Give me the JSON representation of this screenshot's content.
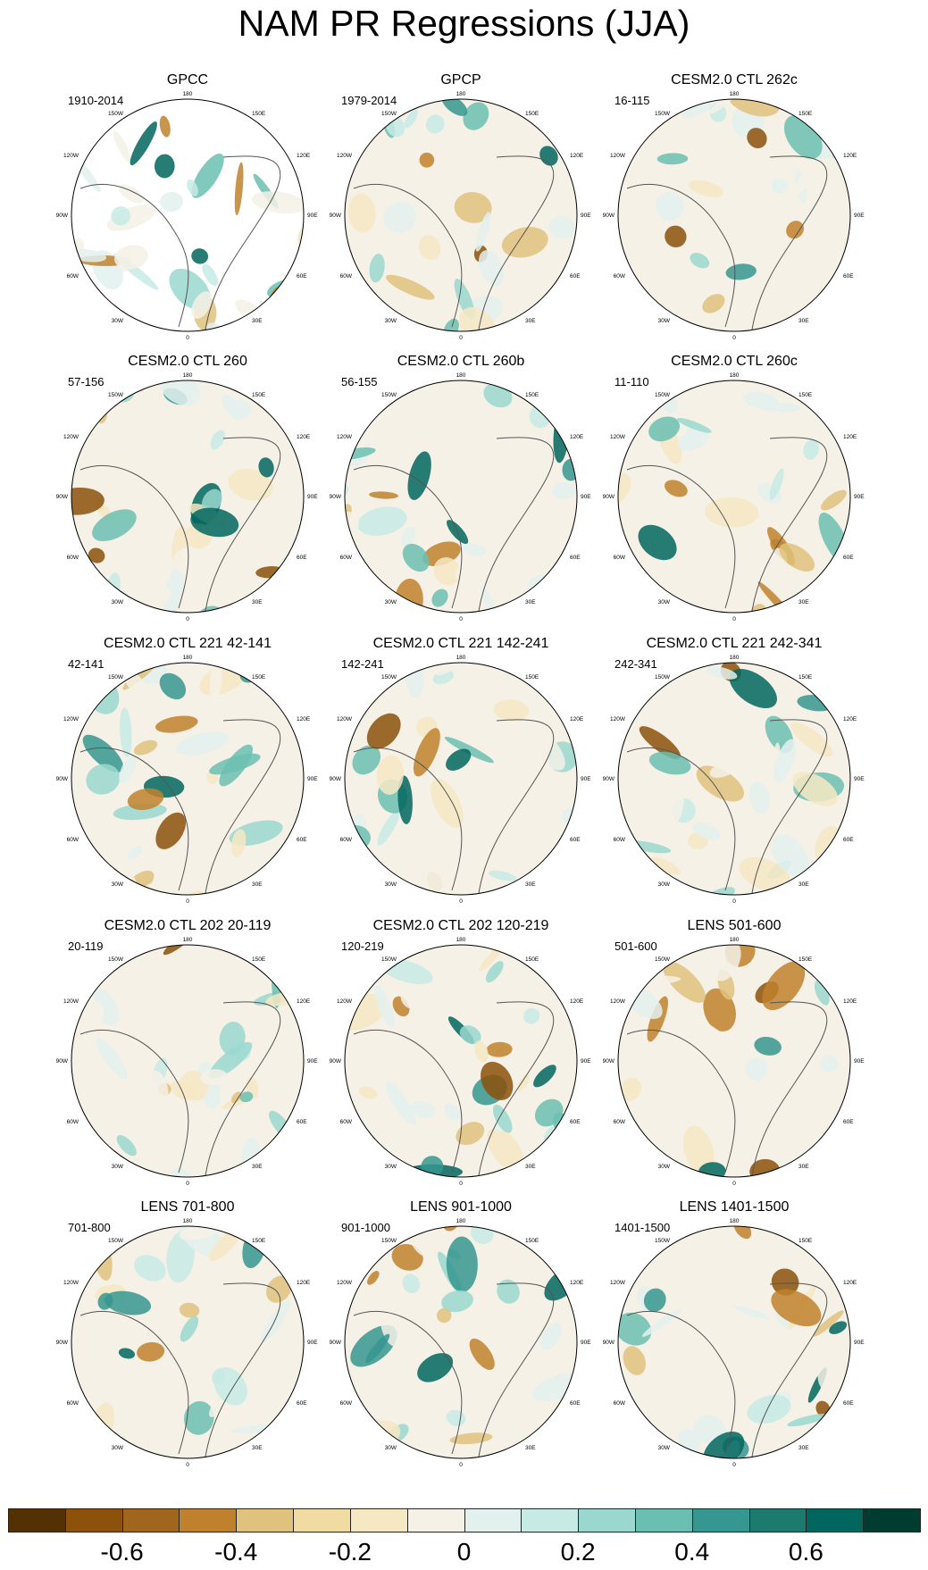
{
  "figure": {
    "title": "NAM PR Regressions (JJA)"
  },
  "lon_labels": {
    "top": "180",
    "upper_left": "150W",
    "upper_right": "150E",
    "mid_upper_left": "120W",
    "mid_upper_right": "120E",
    "left": "90W",
    "right": "90E",
    "mid_lower_left": "60W",
    "mid_lower_right": "60E",
    "lower_left": "30W",
    "lower_right": "30E",
    "bottom": "0"
  },
  "panels": [
    {
      "title": "GPCC",
      "years": "1910-2014"
    },
    {
      "title": "GPCP",
      "years": "1979-2014"
    },
    {
      "title": "CESM2.0 CTL 262c",
      "years": "16-115"
    },
    {
      "title": "CESM2.0 CTL 260",
      "years": "57-156"
    },
    {
      "title": "CESM2.0 CTL 260b",
      "years": "56-155"
    },
    {
      "title": "CESM2.0 CTL 260c",
      "years": "11-110"
    },
    {
      "title": "CESM2.0 CTL 221 42-141",
      "years": "42-141"
    },
    {
      "title": "CESM2.0 CTL 221 142-241",
      "years": "142-241"
    },
    {
      "title": "CESM2.0 CTL 221 242-341",
      "years": "242-341"
    },
    {
      "title": "CESM2.0 CTL 202 20-119",
      "years": "20-119"
    },
    {
      "title": "CESM2.0 CTL 202 120-219",
      "years": "120-219"
    },
    {
      "title": "LENS 501-600",
      "years": "501-600"
    },
    {
      "title": "LENS 701-800",
      "years": "701-800"
    },
    {
      "title": "LENS 901-1000",
      "years": "901-1000"
    },
    {
      "title": "LENS 1401-1500",
      "years": "1401-1500"
    }
  ],
  "colorbar": {
    "colors": [
      "#543005",
      "#8c510a",
      "#a0661d",
      "#bf812d",
      "#dfc27d",
      "#f0dca3",
      "#f6e8c3",
      "#f5f1e6",
      "#e3f1ee",
      "#c7eae5",
      "#9ad8cf",
      "#6bbfb2",
      "#35978f",
      "#1d7a6e",
      "#01665e",
      "#003c30"
    ],
    "labels": [
      "-0.6",
      "-0.4",
      "-0.2",
      "0",
      "0.2",
      "0.4",
      "0.6"
    ]
  }
}
